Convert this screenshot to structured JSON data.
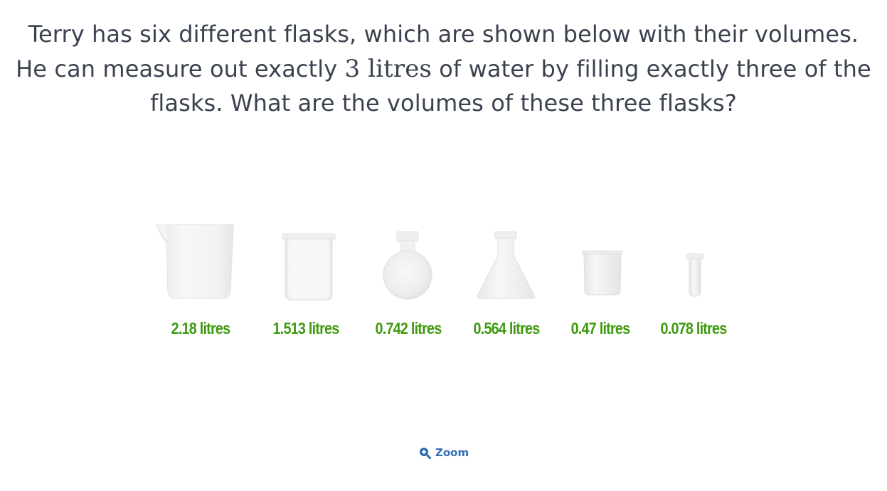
{
  "question": {
    "part1": "Terry has six different flasks, which are shown below with their volumes. He can measure out exactly ",
    "math": "3 litres",
    "part2": " of water by filling exactly three of the flasks. What are the volumes of these three flasks?"
  },
  "flasks": [
    {
      "icon": "measuring-jug-icon",
      "label": "2.18 litres"
    },
    {
      "icon": "beaker-icon",
      "label": "1.513 litres"
    },
    {
      "icon": "round-flask-icon",
      "label": "0.742 litres"
    },
    {
      "icon": "conical-flask-icon",
      "label": "0.564 litres"
    },
    {
      "icon": "small-beaker-icon",
      "label": "0.47 litres"
    },
    {
      "icon": "test-tube-icon",
      "label": "0.078 litres"
    }
  ],
  "zoom": {
    "icon": "zoom-in-icon",
    "label": "Zoom"
  },
  "colors": {
    "text": "#3a4250",
    "label": "#3f9a0f",
    "link": "#2f6db5"
  }
}
